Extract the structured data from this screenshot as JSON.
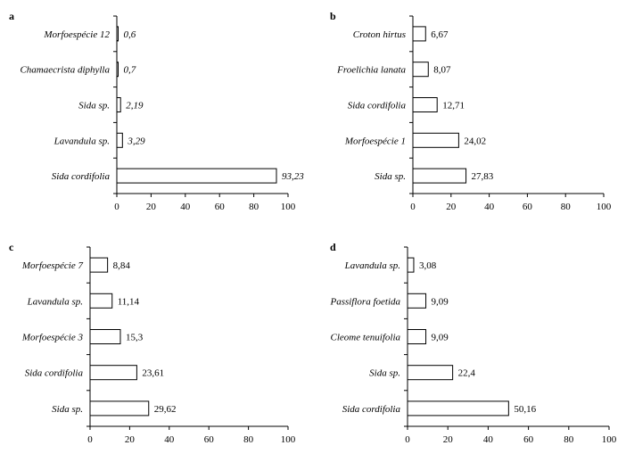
{
  "chart_data": [
    {
      "type": "bar",
      "orientation": "horizontal",
      "panel": "a",
      "categories": [
        "Morfoespécie 12",
        "Chamaecrista diphylla",
        "Sida sp.",
        "Lavandula sp.",
        "Sida cordifolia"
      ],
      "values": [
        0.6,
        0.7,
        2.19,
        3.29,
        93.23
      ],
      "value_labels": [
        "0,6",
        "0,7",
        "2,19",
        "3,29",
        "93,23"
      ],
      "value_label_style": "italic",
      "xlim": [
        0,
        100
      ],
      "xticks": [
        "0",
        "20",
        "40",
        "60",
        "80",
        "100"
      ],
      "grid": false
    },
    {
      "type": "bar",
      "orientation": "horizontal",
      "panel": "b",
      "categories": [
        "Croton hirtus",
        "Froelichia lanata",
        "Sida cordifolia",
        "Morfoespécie 1",
        "Sida sp."
      ],
      "values": [
        6.67,
        8.07,
        12.71,
        24.02,
        27.83
      ],
      "value_labels": [
        "6,67",
        "8,07",
        "12,71",
        "24,02",
        "27,83"
      ],
      "value_label_style": "normal",
      "xlim": [
        0,
        100
      ],
      "xticks": [
        "0",
        "20",
        "40",
        "60",
        "80",
        "100"
      ],
      "grid": false
    },
    {
      "type": "bar",
      "orientation": "horizontal",
      "panel": "c",
      "categories": [
        "Morfoespécie 7",
        "Lavandula sp.",
        "Morfoespécie 3",
        "Sida cordifolia",
        "Sida sp."
      ],
      "values": [
        8.84,
        11.14,
        15.3,
        23.61,
        29.62
      ],
      "value_labels": [
        "8,84",
        "11,14",
        "15,3",
        "23,61",
        "29,62"
      ],
      "value_label_style": "normal",
      "xlim": [
        0,
        100
      ],
      "xticks": [
        "0",
        "20",
        "40",
        "60",
        "80",
        "100"
      ],
      "grid": false
    },
    {
      "type": "bar",
      "orientation": "horizontal",
      "panel": "d",
      "categories": [
        "Lavandula sp.",
        "Passiflora foetida",
        "Cleome tenuifolia",
        "Sida sp.",
        "Sida cordifolia"
      ],
      "values": [
        3.08,
        9.09,
        9.09,
        22.4,
        50.16
      ],
      "value_labels": [
        "3,08",
        "9,09",
        "9,09",
        "22,4",
        "50,16"
      ],
      "value_label_style": "normal",
      "xlim": [
        0,
        100
      ],
      "xticks": [
        "0",
        "20",
        "40",
        "60",
        "80",
        "100"
      ],
      "grid": false
    }
  ]
}
